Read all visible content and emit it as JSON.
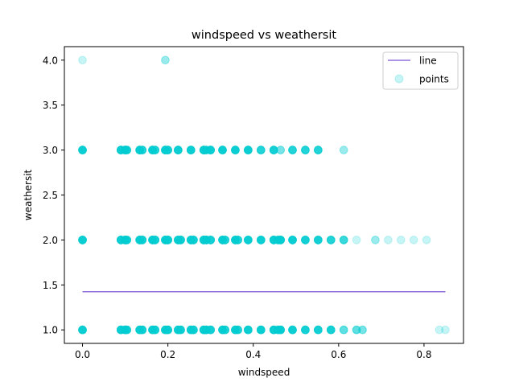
{
  "chart_data": {
    "type": "scatter",
    "title": "windspeed vs weathersit",
    "xlabel": "windspeed",
    "ylabel": "weathersit",
    "xlim": [
      -0.0425,
      0.8925
    ],
    "ylim": [
      0.85,
      4.15
    ],
    "xticks": [
      0.0,
      0.2,
      0.4,
      0.6,
      0.8
    ],
    "xtick_labels": [
      "0.0",
      "0.2",
      "0.4",
      "0.6",
      "0.8"
    ],
    "yticks": [
      1.0,
      1.5,
      2.0,
      2.5,
      3.0,
      3.5,
      4.0
    ],
    "ytick_labels": [
      "1.0",
      "1.5",
      "2.0",
      "2.5",
      "3.0",
      "3.5",
      "4.0"
    ],
    "grid": false,
    "legend": {
      "location": "upper-right",
      "entries": [
        {
          "label": "line",
          "type": "line",
          "color": "#9370db"
        },
        {
          "label": "points",
          "type": "marker",
          "color": "#00ced1"
        }
      ]
    },
    "series": [
      {
        "name": "line",
        "type": "line",
        "color": "#9370db",
        "x": [
          0.0,
          0.85
        ],
        "y": [
          1.425,
          1.425
        ]
      },
      {
        "name": "points",
        "type": "scatter",
        "color": "#00ced1",
        "alpha": 0.22,
        "points": [
          [
            0.0,
            1
          ],
          [
            0.09,
            1
          ],
          [
            0.1,
            1
          ],
          [
            0.104,
            1
          ],
          [
            0.134,
            1
          ],
          [
            0.14,
            1
          ],
          [
            0.164,
            1
          ],
          [
            0.17,
            1
          ],
          [
            0.194,
            1
          ],
          [
            0.2,
            1
          ],
          [
            0.224,
            1
          ],
          [
            0.23,
            1
          ],
          [
            0.254,
            1
          ],
          [
            0.26,
            1
          ],
          [
            0.284,
            1
          ],
          [
            0.29,
            1
          ],
          [
            0.3,
            1
          ],
          [
            0.328,
            1
          ],
          [
            0.334,
            1
          ],
          [
            0.358,
            1
          ],
          [
            0.364,
            1
          ],
          [
            0.388,
            1
          ],
          [
            0.418,
            1
          ],
          [
            0.448,
            1
          ],
          [
            0.458,
            1
          ],
          [
            0.464,
            1
          ],
          [
            0.492,
            1
          ],
          [
            0.522,
            1
          ],
          [
            0.552,
            1
          ],
          [
            0.582,
            1
          ],
          [
            0.612,
            1
          ],
          [
            0.642,
            1
          ],
          [
            0.656,
            1
          ],
          [
            0.836,
            1
          ],
          [
            0.85,
            1
          ],
          [
            0.0,
            2
          ],
          [
            0.09,
            2
          ],
          [
            0.1,
            2
          ],
          [
            0.104,
            2
          ],
          [
            0.134,
            2
          ],
          [
            0.14,
            2
          ],
          [
            0.164,
            2
          ],
          [
            0.17,
            2
          ],
          [
            0.194,
            2
          ],
          [
            0.2,
            2
          ],
          [
            0.224,
            2
          ],
          [
            0.23,
            2
          ],
          [
            0.254,
            2
          ],
          [
            0.26,
            2
          ],
          [
            0.284,
            2
          ],
          [
            0.29,
            2
          ],
          [
            0.3,
            2
          ],
          [
            0.328,
            2
          ],
          [
            0.334,
            2
          ],
          [
            0.358,
            2
          ],
          [
            0.364,
            2
          ],
          [
            0.388,
            2
          ],
          [
            0.418,
            2
          ],
          [
            0.448,
            2
          ],
          [
            0.458,
            2
          ],
          [
            0.464,
            2
          ],
          [
            0.492,
            2
          ],
          [
            0.522,
            2
          ],
          [
            0.552,
            2
          ],
          [
            0.582,
            2
          ],
          [
            0.612,
            2
          ],
          [
            0.642,
            2
          ],
          [
            0.686,
            2
          ],
          [
            0.716,
            2
          ],
          [
            0.746,
            2
          ],
          [
            0.776,
            2
          ],
          [
            0.806,
            2
          ],
          [
            0.0,
            3
          ],
          [
            0.09,
            3
          ],
          [
            0.1,
            3
          ],
          [
            0.104,
            3
          ],
          [
            0.134,
            3
          ],
          [
            0.14,
            3
          ],
          [
            0.164,
            3
          ],
          [
            0.17,
            3
          ],
          [
            0.194,
            3
          ],
          [
            0.2,
            3
          ],
          [
            0.224,
            3
          ],
          [
            0.254,
            3
          ],
          [
            0.284,
            3
          ],
          [
            0.29,
            3
          ],
          [
            0.3,
            3
          ],
          [
            0.328,
            3
          ],
          [
            0.358,
            3
          ],
          [
            0.388,
            3
          ],
          [
            0.418,
            3
          ],
          [
            0.448,
            3
          ],
          [
            0.464,
            3
          ],
          [
            0.492,
            3
          ],
          [
            0.522,
            3
          ],
          [
            0.552,
            3
          ],
          [
            0.612,
            3
          ],
          [
            0.0,
            4
          ],
          [
            0.194,
            4
          ]
        ],
        "density": [
          12,
          12,
          12,
          8,
          12,
          10,
          12,
          10,
          12,
          12,
          12,
          10,
          12,
          10,
          12,
          12,
          10,
          12,
          8,
          12,
          8,
          12,
          12,
          12,
          8,
          12,
          12,
          10,
          10,
          10,
          4,
          4,
          3,
          1,
          1,
          12,
          12,
          12,
          8,
          12,
          10,
          12,
          10,
          12,
          12,
          12,
          10,
          12,
          10,
          12,
          12,
          10,
          12,
          8,
          12,
          8,
          12,
          12,
          12,
          8,
          12,
          12,
          10,
          10,
          8,
          6,
          1,
          2,
          1,
          1,
          1,
          1,
          12,
          12,
          12,
          8,
          12,
          8,
          12,
          8,
          12,
          10,
          12,
          12,
          12,
          6,
          12,
          12,
          12,
          12,
          8,
          10,
          3,
          8,
          8,
          8,
          2,
          1,
          2
        ]
      }
    ]
  }
}
